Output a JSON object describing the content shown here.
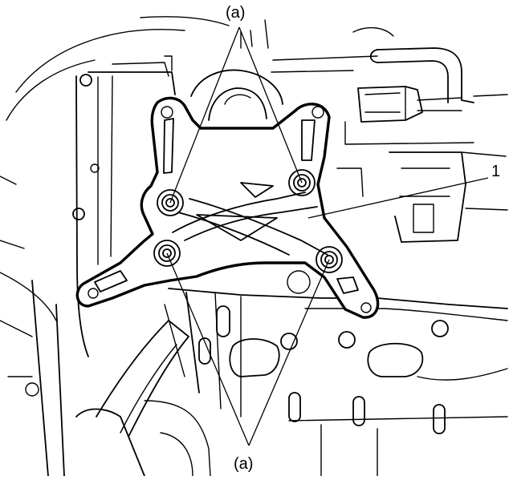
{
  "callouts": {
    "top_label": "(a)",
    "bottom_label": "(a)",
    "part_number": "1"
  }
}
